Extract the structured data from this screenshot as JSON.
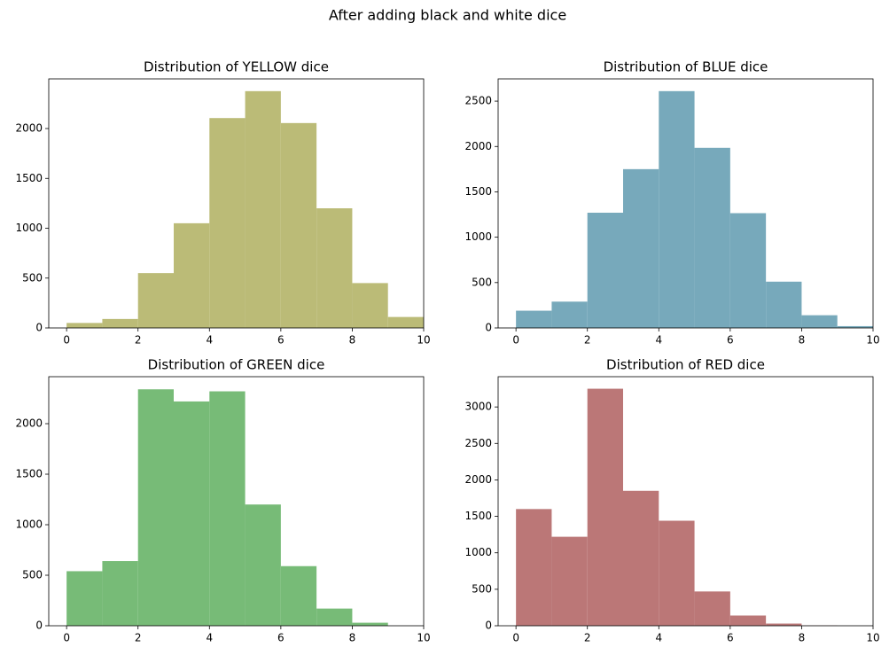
{
  "title": "After adding black and white dice",
  "chart_data": [
    {
      "type": "histogram",
      "title": "Distribution of YELLOW dice",
      "color": "#bbbb77",
      "bins": [
        0,
        1,
        2,
        3,
        4,
        5,
        6,
        7,
        8,
        9,
        10
      ],
      "values": [
        50,
        90,
        550,
        1050,
        2105,
        2375,
        2055,
        1200,
        450,
        110
      ],
      "xlim": [
        -0.5,
        10
      ],
      "xticks": [
        0,
        2,
        4,
        6,
        8,
        10
      ],
      "ylim": [
        0,
        2498
      ],
      "yticks": [
        0,
        500,
        1000,
        1500,
        2000
      ]
    },
    {
      "type": "histogram",
      "title": "Distribution of BLUE dice",
      "color": "#77a9bb",
      "bins": [
        0,
        1,
        2,
        3,
        4,
        5,
        6,
        7,
        8,
        9,
        10
      ],
      "values": [
        190,
        290,
        1270,
        1750,
        2610,
        1985,
        1265,
        510,
        140,
        20
      ],
      "xlim": [
        -0.5,
        10
      ],
      "xticks": [
        0,
        2,
        4,
        6,
        8,
        10
      ],
      "ylim": [
        0,
        2745
      ],
      "yticks": [
        0,
        500,
        1000,
        1500,
        2000,
        2500
      ]
    },
    {
      "type": "histogram",
      "title": "Distribution of GREEN dice",
      "color": "#77bb77",
      "bins": [
        0,
        1,
        2,
        3,
        4,
        5,
        6,
        7,
        8,
        9,
        10
      ],
      "values": [
        540,
        640,
        2340,
        2220,
        2320,
        1200,
        590,
        170,
        30,
        0
      ],
      "xlim": [
        -0.5,
        10
      ],
      "xticks": [
        0,
        2,
        4,
        6,
        8,
        10
      ],
      "ylim": [
        0,
        2465
      ],
      "yticks": [
        0,
        500,
        1000,
        1500,
        2000
      ]
    },
    {
      "type": "histogram",
      "title": "Distribution of RED dice",
      "color": "#bb7777",
      "bins": [
        0,
        1,
        2,
        3,
        4,
        5,
        6,
        7,
        8,
        9,
        10
      ],
      "values": [
        1600,
        1220,
        3250,
        1850,
        1440,
        470,
        140,
        30,
        3,
        0
      ],
      "xlim": [
        -0.5,
        10
      ],
      "xticks": [
        0,
        2,
        4,
        6,
        8,
        10
      ],
      "ylim": [
        0,
        3415
      ],
      "yticks": [
        0,
        500,
        1000,
        1500,
        2000,
        2500,
        3000
      ]
    }
  ]
}
